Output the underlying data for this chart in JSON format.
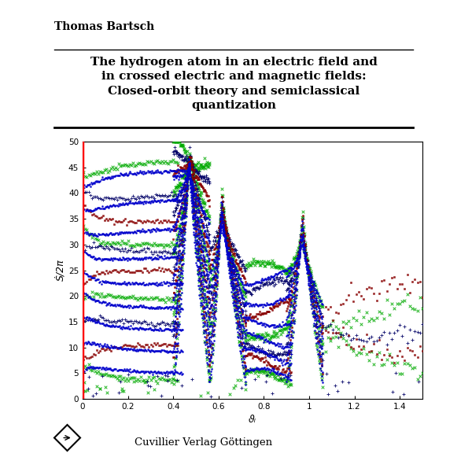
{
  "title_line1": "The hydrogen atom in an electric field and",
  "title_line2": "in crossed electric and magnetic fields:",
  "title_line3": "Closed-orbit theory and semiclassical",
  "title_line4": "quantization",
  "author": "Thomas Bartsch",
  "publisher": "Cuvillier Verlag Göttingen",
  "xlabel": "ϑᵢ",
  "ylabel": "Ṡ/2π",
  "xlim": [
    0,
    1.5
  ],
  "ylim": [
    0,
    50
  ],
  "xticks": [
    0,
    0.2,
    0.4,
    0.6,
    0.8,
    1.0,
    1.2,
    1.4
  ],
  "yticks": [
    0,
    5,
    10,
    15,
    20,
    25,
    30,
    35,
    40,
    45,
    50
  ],
  "background_color": "#ffffff",
  "plot_bg_color": "#ffffff",
  "figsize": [
    6.0,
    6.0
  ],
  "dpi": 100
}
